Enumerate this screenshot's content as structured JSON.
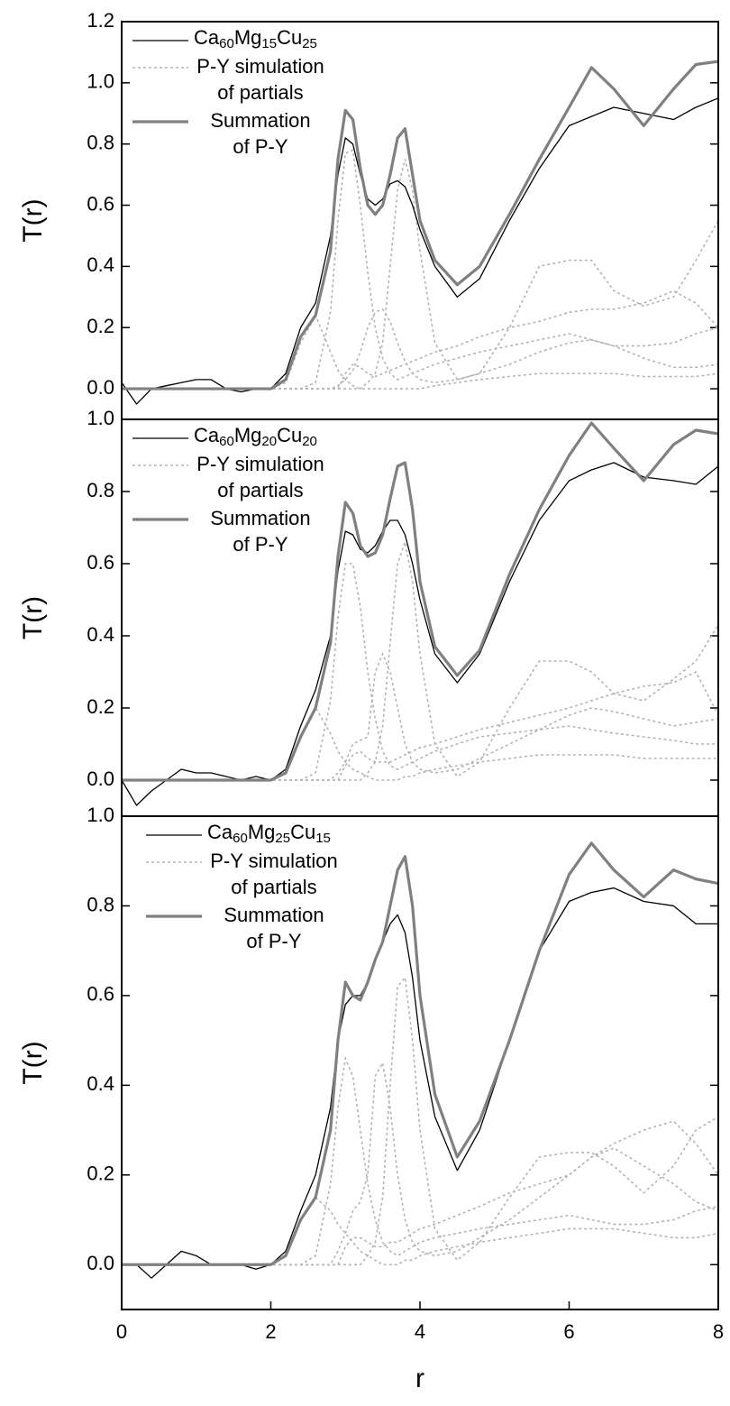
{
  "chart_data": [
    {
      "type": "line",
      "ylabel": "T(r)",
      "x": [
        0,
        0.2,
        0.4,
        0.6,
        0.8,
        1.0,
        1.2,
        1.4,
        1.6,
        1.8,
        2.0,
        2.2,
        2.4,
        2.6,
        2.8,
        2.9,
        3.0,
        3.1,
        3.2,
        3.3,
        3.4,
        3.5,
        3.6,
        3.7,
        3.8,
        3.9,
        4.0,
        4.2,
        4.5,
        4.8,
        5.2,
        5.6,
        6.0,
        6.3,
        6.6,
        7.0,
        7.4,
        7.7,
        8.0
      ],
      "xlim": [
        0,
        8
      ],
      "ylim": [
        -0.1,
        1.2
      ],
      "yticks": [
        {
          "value": 0,
          "label": "0.0"
        },
        0.2,
        0.4,
        0.6,
        0.8,
        {
          "value": 1,
          "label": "1.0"
        },
        1.2
      ],
      "series": [
        {
          "name": "Ca60Mg15Cu25",
          "color": "#000000",
          "values": [
            0.02,
            -0.05,
            0.0,
            0.01,
            0.02,
            0.03,
            0.03,
            0.0,
            -0.01,
            0.0,
            0.0,
            0.05,
            0.2,
            0.28,
            0.5,
            0.7,
            0.82,
            0.8,
            0.7,
            0.62,
            0.6,
            0.62,
            0.67,
            0.68,
            0.66,
            0.6,
            0.52,
            0.4,
            0.3,
            0.36,
            0.55,
            0.72,
            0.86,
            0.89,
            0.92,
            0.9,
            0.88,
            0.92,
            0.95
          ]
        },
        {
          "name": [
            "P-Y simulation",
            "of partials"
          ],
          "color": "#b4b4b4",
          "dashed": true,
          "curves": [
            [
              0,
              0,
              0,
              0,
              0,
              0,
              0,
              0,
              0,
              0,
              0,
              0.02,
              0.15,
              0.24,
              0.12,
              0.06,
              0.03,
              0.01,
              0,
              0,
              0,
              0,
              0,
              0,
              0,
              0,
              0,
              0.01,
              0.02,
              0.03,
              0.04,
              0.05,
              0.05,
              0.05,
              0.05,
              0.04,
              0.04,
              0.04,
              0.05
            ],
            [
              0,
              0,
              0,
              0,
              0,
              0,
              0,
              0,
              0,
              0,
              0,
              0,
              0,
              0.02,
              0.25,
              0.55,
              0.77,
              0.78,
              0.6,
              0.38,
              0.2,
              0.1,
              0.05,
              0.03,
              0.04,
              0.05,
              0.06,
              0.08,
              0.1,
              0.12,
              0.14,
              0.16,
              0.18,
              0.16,
              0.14,
              0.14,
              0.15,
              0.18,
              0.2
            ],
            [
              0,
              0,
              0,
              0,
              0,
              0,
              0,
              0,
              0,
              0,
              0,
              0,
              0,
              0,
              0,
              0.01,
              0.03,
              0.06,
              0.12,
              0.2,
              0.25,
              0.26,
              0.22,
              0.15,
              0.09,
              0.05,
              0.03,
              0.02,
              0.03,
              0.05,
              0.08,
              0.12,
              0.15,
              0.16,
              0.14,
              0.1,
              0.07,
              0.07,
              0.08
            ],
            [
              0,
              0,
              0,
              0,
              0,
              0,
              0,
              0,
              0,
              0,
              0,
              0,
              0,
              0,
              0,
              0,
              0,
              0,
              0,
              0.02,
              0.05,
              0.15,
              0.4,
              0.65,
              0.75,
              0.65,
              0.45,
              0.15,
              0.03,
              0.05,
              0.2,
              0.4,
              0.42,
              0.42,
              0.32,
              0.27,
              0.3,
              0.42,
              0.55
            ],
            [
              0,
              0,
              0,
              0,
              0,
              0,
              0,
              0,
              0,
              0,
              0,
              0,
              0,
              0,
              0,
              0,
              0.05,
              0.08,
              0.07,
              0.05,
              0.04,
              0.05,
              0.06,
              0.07,
              0.08,
              0.09,
              0.1,
              0.12,
              0.14,
              0.17,
              0.2,
              0.22,
              0.25,
              0.26,
              0.26,
              0.28,
              0.32,
              0.28,
              0.2
            ]
          ]
        },
        {
          "name": [
            "Summation",
            "of P-Y"
          ],
          "color": "#808080",
          "values": [
            0,
            0,
            0,
            0,
            0,
            0,
            0,
            0,
            0,
            0,
            0,
            0.03,
            0.17,
            0.24,
            0.45,
            0.75,
            0.91,
            0.88,
            0.72,
            0.6,
            0.57,
            0.6,
            0.7,
            0.82,
            0.85,
            0.7,
            0.55,
            0.42,
            0.34,
            0.4,
            0.57,
            0.75,
            0.92,
            1.05,
            0.98,
            0.86,
            0.98,
            1.06,
            1.07
          ]
        }
      ]
    },
    {
      "type": "line",
      "ylabel": "T(r)",
      "x": [
        0,
        0.2,
        0.4,
        0.6,
        0.8,
        1.0,
        1.2,
        1.4,
        1.6,
        1.8,
        2.0,
        2.2,
        2.4,
        2.6,
        2.8,
        2.9,
        3.0,
        3.1,
        3.2,
        3.3,
        3.4,
        3.5,
        3.6,
        3.7,
        3.8,
        3.9,
        4.0,
        4.2,
        4.5,
        4.8,
        5.2,
        5.6,
        6.0,
        6.3,
        6.6,
        7.0,
        7.4,
        7.7,
        8.0
      ],
      "xlim": [
        0,
        8
      ],
      "ylim": [
        -0.1,
        1.0
      ],
      "yticks": [
        {
          "value": 0,
          "label": "0.0"
        },
        0.2,
        0.4,
        0.6,
        0.8,
        {
          "value": 1,
          "label": "1.0"
        }
      ],
      "series": [
        {
          "name": "Ca60Mg20Cu20",
          "color": "#000000",
          "values": [
            0.0,
            -0.07,
            -0.03,
            0.0,
            0.03,
            0.02,
            0.02,
            0.01,
            0.0,
            0.01,
            0.0,
            0.03,
            0.15,
            0.25,
            0.4,
            0.58,
            0.69,
            0.68,
            0.64,
            0.63,
            0.65,
            0.69,
            0.72,
            0.72,
            0.68,
            0.6,
            0.5,
            0.35,
            0.27,
            0.35,
            0.55,
            0.72,
            0.83,
            0.86,
            0.88,
            0.84,
            0.83,
            0.82,
            0.87
          ]
        },
        {
          "name": [
            "P-Y simulation",
            "of partials"
          ],
          "color": "#b4b4b4",
          "dashed": true,
          "curves": [
            [
              0,
              0,
              0,
              0,
              0,
              0,
              0,
              0,
              0,
              0,
              0,
              0.02,
              0.12,
              0.2,
              0.13,
              0.08,
              0.05,
              0.03,
              0.02,
              0.01,
              0,
              0,
              0,
              0,
              0.01,
              0.01,
              0.02,
              0.03,
              0.04,
              0.05,
              0.06,
              0.07,
              0.07,
              0.07,
              0.07,
              0.06,
              0.06,
              0.06,
              0.06
            ],
            [
              0,
              0,
              0,
              0,
              0,
              0,
              0,
              0,
              0,
              0,
              0,
              0,
              0,
              0.02,
              0.22,
              0.45,
              0.6,
              0.6,
              0.48,
              0.3,
              0.17,
              0.08,
              0.04,
              0.03,
              0.04,
              0.05,
              0.06,
              0.08,
              0.1,
              0.12,
              0.13,
              0.14,
              0.15,
              0.14,
              0.13,
              0.12,
              0.11,
              0.1,
              0.1
            ],
            [
              0,
              0,
              0,
              0,
              0,
              0,
              0,
              0,
              0,
              0,
              0,
              0,
              0,
              0,
              0,
              0.02,
              0.05,
              0.1,
              0.11,
              0.12,
              0.3,
              0.35,
              0.3,
              0.2,
              0.1,
              0.05,
              0.03,
              0.02,
              0.03,
              0.06,
              0.1,
              0.14,
              0.18,
              0.2,
              0.19,
              0.17,
              0.15,
              0.16,
              0.17
            ],
            [
              0,
              0,
              0,
              0,
              0,
              0,
              0,
              0,
              0,
              0,
              0,
              0,
              0,
              0,
              0,
              0,
              0,
              0,
              0,
              0.02,
              0.05,
              0.15,
              0.38,
              0.6,
              0.66,
              0.55,
              0.35,
              0.1,
              0.01,
              0.05,
              0.2,
              0.33,
              0.33,
              0.3,
              0.24,
              0.22,
              0.28,
              0.33,
              0.43
            ],
            [
              0,
              0,
              0,
              0,
              0,
              0,
              0,
              0,
              0,
              0,
              0,
              0,
              0,
              0,
              0,
              0,
              0.04,
              0.07,
              0.08,
              0.06,
              0.05,
              0.05,
              0.05,
              0.06,
              0.07,
              0.08,
              0.09,
              0.1,
              0.12,
              0.14,
              0.16,
              0.18,
              0.2,
              0.22,
              0.24,
              0.26,
              0.27,
              0.3,
              0.18
            ]
          ]
        },
        {
          "name": [
            "Summation",
            "of P-Y"
          ],
          "color": "#808080",
          "values": [
            0,
            0,
            0,
            0,
            0,
            0,
            0,
            0,
            0,
            0,
            0,
            0.02,
            0.12,
            0.2,
            0.38,
            0.62,
            0.77,
            0.74,
            0.65,
            0.62,
            0.63,
            0.68,
            0.78,
            0.87,
            0.88,
            0.75,
            0.55,
            0.37,
            0.29,
            0.36,
            0.57,
            0.75,
            0.9,
            0.99,
            0.92,
            0.83,
            0.93,
            0.97,
            0.96
          ]
        }
      ]
    },
    {
      "type": "line",
      "ylabel": "T(r)",
      "xlabel": "r",
      "x": [
        0,
        0.2,
        0.4,
        0.6,
        0.8,
        1.0,
        1.2,
        1.4,
        1.6,
        1.8,
        2.0,
        2.2,
        2.4,
        2.6,
        2.8,
        2.9,
        3.0,
        3.1,
        3.2,
        3.3,
        3.4,
        3.5,
        3.6,
        3.7,
        3.8,
        3.9,
        4.0,
        4.2,
        4.5,
        4.8,
        5.2,
        5.6,
        6.0,
        6.3,
        6.6,
        7.0,
        7.4,
        7.7,
        8.0
      ],
      "xlim": [
        0,
        8
      ],
      "ylim": [
        -0.1,
        1.0
      ],
      "xticks": [
        0,
        2,
        4,
        6,
        8
      ],
      "yticks": [
        {
          "value": 0,
          "label": "0.0"
        },
        0.2,
        0.4,
        0.6,
        0.8,
        {
          "value": 1,
          "label": "1.0"
        }
      ],
      "series": [
        {
          "name": "Ca60Mg25Cu15",
          "color": "#000000",
          "values": [
            0.0,
            0.0,
            -0.03,
            0.0,
            0.03,
            0.02,
            0.0,
            0.0,
            0.0,
            -0.01,
            0.0,
            0.03,
            0.12,
            0.2,
            0.35,
            0.5,
            0.58,
            0.6,
            0.6,
            0.63,
            0.68,
            0.72,
            0.76,
            0.78,
            0.74,
            0.64,
            0.5,
            0.33,
            0.21,
            0.3,
            0.5,
            0.7,
            0.81,
            0.83,
            0.84,
            0.81,
            0.8,
            0.76,
            0.76
          ]
        },
        {
          "name": [
            "P-Y simulation",
            "of partials"
          ],
          "color": "#b4b4b4",
          "dashed": true,
          "curves": [
            [
              0,
              0,
              0,
              0,
              0,
              0,
              0,
              0,
              0,
              0,
              0,
              0.02,
              0.1,
              0.15,
              0.12,
              0.09,
              0.07,
              0.05,
              0.03,
              0.02,
              0.01,
              0,
              0,
              0,
              0.01,
              0.01,
              0.02,
              0.03,
              0.04,
              0.05,
              0.06,
              0.07,
              0.08,
              0.08,
              0.08,
              0.07,
              0.06,
              0.06,
              0.07
            ],
            [
              0,
              0,
              0,
              0,
              0,
              0,
              0,
              0,
              0,
              0,
              0,
              0,
              0,
              0.02,
              0.18,
              0.35,
              0.46,
              0.42,
              0.3,
              0.18,
              0.1,
              0.05,
              0.03,
              0.02,
              0.03,
              0.04,
              0.05,
              0.06,
              0.07,
              0.08,
              0.09,
              0.1,
              0.11,
              0.1,
              0.09,
              0.09,
              0.1,
              0.12,
              0.13
            ],
            [
              0,
              0,
              0,
              0,
              0,
              0,
              0,
              0,
              0,
              0,
              0,
              0,
              0,
              0,
              0,
              0.03,
              0.07,
              0.12,
              0.14,
              0.2,
              0.42,
              0.45,
              0.35,
              0.2,
              0.1,
              0.05,
              0.03,
              0.02,
              0.03,
              0.06,
              0.1,
              0.15,
              0.2,
              0.24,
              0.26,
              0.22,
              0.18,
              0.14,
              0.12
            ],
            [
              0,
              0,
              0,
              0,
              0,
              0,
              0,
              0,
              0,
              0,
              0,
              0,
              0,
              0,
              0,
              0,
              0,
              0,
              0,
              0.02,
              0.05,
              0.15,
              0.4,
              0.62,
              0.64,
              0.5,
              0.3,
              0.08,
              0.01,
              0.05,
              0.15,
              0.24,
              0.25,
              0.25,
              0.22,
              0.16,
              0.22,
              0.3,
              0.33
            ],
            [
              0,
              0,
              0,
              0,
              0,
              0,
              0,
              0,
              0,
              0,
              0,
              0,
              0,
              0,
              0,
              0,
              0.04,
              0.06,
              0.06,
              0.05,
              0.04,
              0.04,
              0.05,
              0.05,
              0.06,
              0.07,
              0.08,
              0.09,
              0.11,
              0.13,
              0.16,
              0.18,
              0.2,
              0.24,
              0.27,
              0.3,
              0.32,
              0.27,
              0.2
            ]
          ]
        },
        {
          "name": [
            "Summation",
            "of P-Y"
          ],
          "color": "#808080",
          "values": [
            0,
            0,
            0,
            0,
            0,
            0,
            0,
            0,
            0,
            0,
            0,
            0.02,
            0.1,
            0.15,
            0.3,
            0.5,
            0.63,
            0.6,
            0.59,
            0.63,
            0.68,
            0.72,
            0.8,
            0.88,
            0.91,
            0.8,
            0.6,
            0.38,
            0.24,
            0.32,
            0.5,
            0.7,
            0.87,
            0.94,
            0.88,
            0.82,
            0.88,
            0.86,
            0.85
          ]
        }
      ]
    }
  ]
}
